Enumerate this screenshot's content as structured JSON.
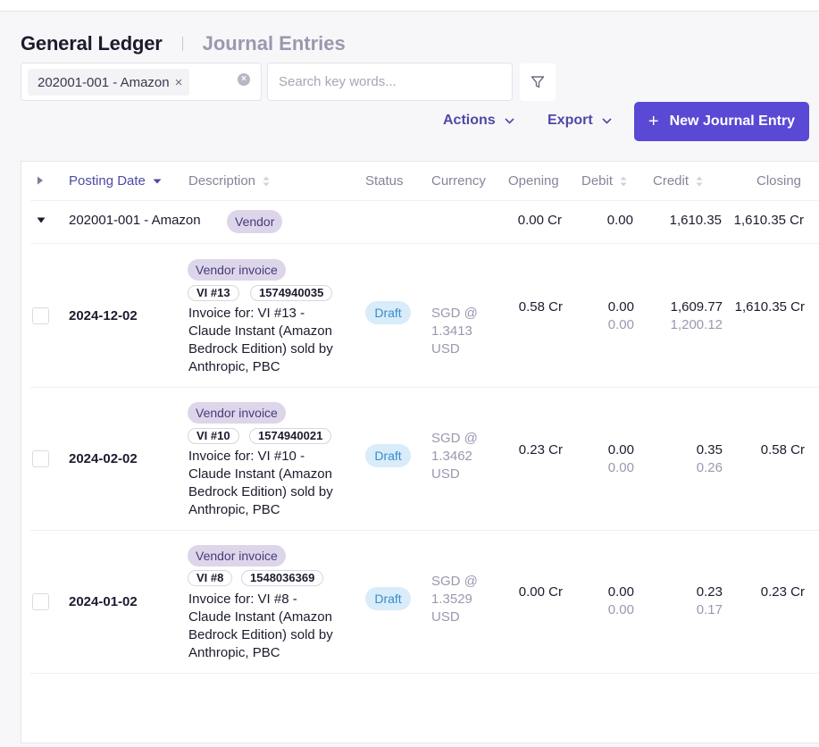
{
  "header": {
    "title": "General Ledger",
    "subtitle": "Journal Entries"
  },
  "filters": {
    "chip_label": "202001-001 - Amazon",
    "chip_remove": "×",
    "clear_symbol": "×",
    "search_placeholder": "Search key words...",
    "filter_icon": "filter-icon"
  },
  "toolbar": {
    "actions_label": "Actions",
    "export_label": "Export",
    "new_entry_plus": "+",
    "new_entry_label": "New Journal Entry"
  },
  "table": {
    "columns": {
      "posting_date": "Posting Date",
      "description": "Description",
      "status": "Status",
      "currency": "Currency",
      "opening": "Opening",
      "debit": "Debit",
      "credit": "Credit",
      "closing": "Closing"
    },
    "group": {
      "name": "202001-001 - Amazon",
      "tag": "Vendor",
      "opening": "0.00 Cr",
      "debit": "0.00",
      "credit": "1,610.35",
      "closing": "1,610.35 Cr"
    },
    "rows": [
      {
        "date": "2024-12-02",
        "type_tag": "Vendor invoice",
        "ref": "VI #13",
        "number": "1574940035",
        "desc1": "Invoice for: VI #13 -",
        "desc2": "Claude Instant (Amazon",
        "desc3": "Bedrock Edition) sold by",
        "desc4": "Anthropic, PBC",
        "status": "Draft",
        "cur1": "SGD @",
        "cur2": "1.3413",
        "cur3": "USD",
        "opening": "0.58 Cr",
        "debit": "0.00",
        "debit_base": "0.00",
        "credit": "1,609.77",
        "credit_base": "1,200.12",
        "closing": "1,610.35 Cr"
      },
      {
        "date": "2024-02-02",
        "type_tag": "Vendor invoice",
        "ref": "VI #10",
        "number": "1574940021",
        "desc1": "Invoice for: VI #10 -",
        "desc2": "Claude Instant (Amazon",
        "desc3": "Bedrock Edition) sold by",
        "desc4": "Anthropic, PBC",
        "status": "Draft",
        "cur1": "SGD @",
        "cur2": "1.3462",
        "cur3": "USD",
        "opening": "0.23 Cr",
        "debit": "0.00",
        "debit_base": "0.00",
        "credit": "0.35",
        "credit_base": "0.26",
        "closing": "0.58 Cr"
      },
      {
        "date": "2024-01-02",
        "type_tag": "Vendor invoice",
        "ref": "VI #8",
        "number": "1548036369",
        "desc1": "Invoice for: VI #8 -",
        "desc2": "Claude Instant (Amazon",
        "desc3": "Bedrock Edition) sold by",
        "desc4": "Anthropic, PBC",
        "status": "Draft",
        "cur1": "SGD @",
        "cur2": "1.3529",
        "cur3": "USD",
        "opening": "0.00 Cr",
        "debit": "0.00",
        "debit_base": "0.00",
        "credit": "0.23",
        "credit_base": "0.17",
        "closing": "0.23 Cr"
      }
    ]
  },
  "colors": {
    "accent": "#5a49d4",
    "link": "#4d49a6",
    "tag_bg": "#ddd6ea",
    "draft_bg": "#d8ecfa",
    "draft_text": "#3a8bc8"
  }
}
